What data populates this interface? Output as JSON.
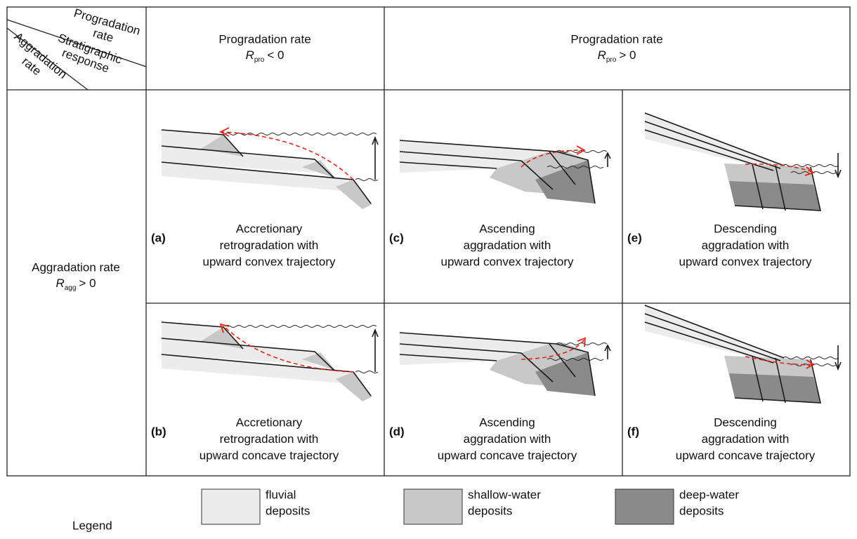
{
  "corner": {
    "progradation_rate": [
      "Progradation",
      "rate"
    ],
    "stratigraphic_response": [
      "Stratigraphic",
      "response"
    ],
    "aggradation_rate": [
      "Aggradation",
      "rate"
    ]
  },
  "columns": [
    {
      "title": "Progradation rate",
      "symbol": "R",
      "subscript": "pro",
      "relation": "< 0"
    },
    {
      "title": "Progradation rate",
      "symbol": "R",
      "subscript": "pro",
      "relation": "> 0"
    }
  ],
  "row": {
    "title": "Aggradation rate",
    "symbol": "R",
    "subscript": "agg",
    "relation": "> 0"
  },
  "panels": [
    {
      "letter": "(a)",
      "caption": [
        "Accretionary",
        "retrogradation with",
        "upward convex trajectory"
      ]
    },
    {
      "letter": "(b)",
      "caption": [
        "Accretionary",
        "retrogradation with",
        "upward concave trajectory"
      ]
    },
    {
      "letter": "(c)",
      "caption": [
        "Ascending",
        "aggradation with",
        "upward convex trajectory"
      ]
    },
    {
      "letter": "(d)",
      "caption": [
        "Ascending",
        "aggradation with",
        "upward concave trajectory"
      ]
    },
    {
      "letter": "(e)",
      "caption": [
        "Descending",
        "aggradation with",
        "upward convex trajectory"
      ]
    },
    {
      "letter": "(f)",
      "caption": [
        "Descending",
        "aggradation with",
        "upward concave trajectory"
      ]
    }
  ],
  "legend": {
    "title": "Legend",
    "items": [
      {
        "label": [
          "fluvial",
          "deposits"
        ]
      },
      {
        "label": [
          "shallow-water",
          "deposits"
        ]
      },
      {
        "label": [
          "deep-water",
          "deposits"
        ]
      }
    ]
  }
}
